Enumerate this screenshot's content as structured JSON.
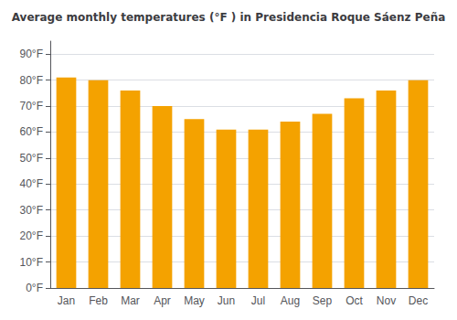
{
  "chart_data": {
    "type": "bar",
    "title": "Average monthly temperatures (°F ) in Presidencia Roque Sáenz Peña",
    "categories": [
      "Jan",
      "Feb",
      "Mar",
      "Apr",
      "May",
      "Jun",
      "Jul",
      "Aug",
      "Sep",
      "Oct",
      "Nov",
      "Dec"
    ],
    "values": [
      81,
      80,
      76,
      70,
      65,
      61,
      61,
      64,
      67,
      73,
      76,
      80
    ],
    "color": "#F4A200",
    "ylim": [
      0,
      95
    ],
    "yticks": [
      {
        "value": 0,
        "label": "0°F"
      },
      {
        "value": 10,
        "label": "10°F"
      },
      {
        "value": 20,
        "label": "20°F"
      },
      {
        "value": 30,
        "label": "30°F"
      },
      {
        "value": 40,
        "label": "40°F"
      },
      {
        "value": 50,
        "label": "50°F"
      },
      {
        "value": 60,
        "label": "60°F"
      },
      {
        "value": 70,
        "label": "70°F"
      },
      {
        "value": 80,
        "label": "80°F"
      },
      {
        "value": 90,
        "label": "90°F"
      }
    ],
    "grid": true
  }
}
